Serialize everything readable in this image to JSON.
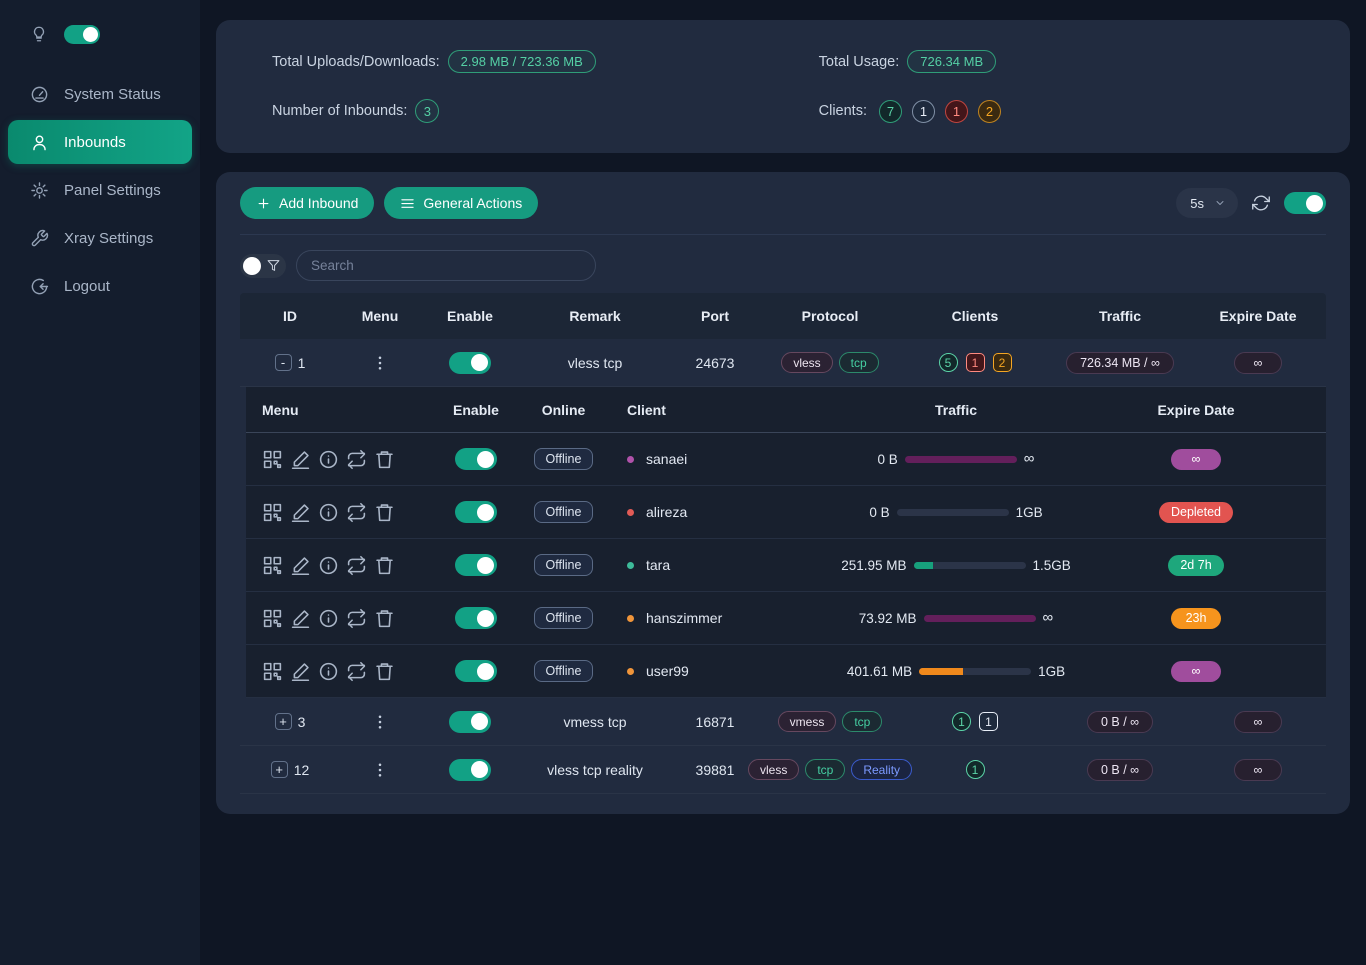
{
  "colors": {
    "accent_green": "#12a185",
    "panel_bg": "#212b3f",
    "page_bg": "#0f1624",
    "sidebar_bg": "#141d2d",
    "magenta": "#a04d9d",
    "red": "#e25450",
    "orange": "#f6941d",
    "green": "#1ea77c"
  },
  "sidebar": {
    "theme_toggle_on": true,
    "items": [
      {
        "label": "System Status",
        "icon": "dashboard-icon",
        "active": false
      },
      {
        "label": "Inbounds",
        "icon": "user-icon",
        "active": true
      },
      {
        "label": "Panel Settings",
        "icon": "gear-icon",
        "active": false
      },
      {
        "label": "Xray Settings",
        "icon": "wrench-icon",
        "active": false
      },
      {
        "label": "Logout",
        "icon": "logout-icon",
        "active": false
      }
    ]
  },
  "stats": {
    "total_uploads_downloads_label": "Total Uploads/Downloads:",
    "total_uploads_downloads_value": "2.98 MB / 723.36 MB",
    "number_of_inbounds_label": "Number of Inbounds:",
    "number_of_inbounds_value": "3",
    "total_usage_label": "Total Usage:",
    "total_usage_value": "726.34 MB",
    "clients_label": "Clients:",
    "client_counts": [
      {
        "value": "7",
        "color": "green"
      },
      {
        "value": "1",
        "color": "gray"
      },
      {
        "value": "1",
        "color": "red"
      },
      {
        "value": "2",
        "color": "orange"
      }
    ]
  },
  "toolbar": {
    "add_inbound_label": "Add Inbound",
    "general_actions_label": "General Actions",
    "refresh_interval": "5s",
    "auto_refresh_on": true
  },
  "search": {
    "placeholder": "Search",
    "value": ""
  },
  "table": {
    "columns": [
      "ID",
      "Menu",
      "Enable",
      "Remark",
      "Port",
      "Protocol",
      "Clients",
      "Traffic",
      "Expire Date"
    ],
    "rows": [
      {
        "id": "1",
        "expanded": true,
        "enabled": true,
        "remark": "vless tcp",
        "port": "24673",
        "protocols": [
          {
            "label": "vless",
            "color": "purple"
          },
          {
            "label": "tcp",
            "color": "green"
          }
        ],
        "client_counts": [
          {
            "value": "5",
            "color": "green",
            "shape": "circle"
          },
          {
            "value": "1",
            "color": "red",
            "shape": "square"
          },
          {
            "value": "2",
            "color": "orange",
            "shape": "square"
          }
        ],
        "traffic": "726.34 MB / ∞",
        "expire": "∞"
      },
      {
        "id": "3",
        "expanded": false,
        "enabled": true,
        "remark": "vmess tcp",
        "port": "16871",
        "protocols": [
          {
            "label": "vmess",
            "color": "purple"
          },
          {
            "label": "tcp",
            "color": "green"
          }
        ],
        "client_counts": [
          {
            "value": "1",
            "color": "green",
            "shape": "circle"
          },
          {
            "value": "1",
            "color": "gray",
            "shape": "square"
          }
        ],
        "traffic": "0 B / ∞",
        "expire": "∞"
      },
      {
        "id": "12",
        "expanded": false,
        "enabled": true,
        "remark": "vless tcp reality",
        "port": "39881",
        "protocols": [
          {
            "label": "vless",
            "color": "purple"
          },
          {
            "label": "tcp",
            "color": "green"
          },
          {
            "label": "Reality",
            "color": "blue"
          }
        ],
        "client_counts": [
          {
            "value": "1",
            "color": "green",
            "shape": "circle"
          }
        ],
        "traffic": "0 B / ∞",
        "expire": "∞"
      }
    ],
    "client_table": {
      "columns": [
        "Menu",
        "Enable",
        "Online",
        "Client",
        "Traffic",
        "Expire Date"
      ],
      "menu_icons": [
        "qrcode-icon",
        "edit-icon",
        "info-icon",
        "reset-icon",
        "delete-icon"
      ],
      "rows": [
        {
          "name": "sanaei",
          "dot_color": "#b052aa",
          "online": "Offline",
          "enabled": true,
          "used": "0 B",
          "limit": "∞",
          "bar_percent": 100,
          "bar_color": "purple",
          "expire_label": "∞",
          "expire_color": "magenta"
        },
        {
          "name": "alireza",
          "dot_color": "#e25b56",
          "online": "Offline",
          "enabled": true,
          "used": "0 B",
          "limit": "1GB",
          "bar_percent": 0,
          "bar_color": "none",
          "expire_label": "Depleted",
          "expire_color": "red"
        },
        {
          "name": "tara",
          "dot_color": "#3dbb9a",
          "online": "Offline",
          "enabled": true,
          "used": "251.95 MB",
          "limit": "1.5GB",
          "bar_percent": 17,
          "bar_color": "green",
          "expire_label": "2d 7h",
          "expire_color": "green"
        },
        {
          "name": "hanszimmer",
          "dot_color": "#f0953a",
          "online": "Offline",
          "enabled": true,
          "used": "73.92 MB",
          "limit": "∞",
          "bar_percent": 100,
          "bar_color": "purple",
          "expire_label": "23h",
          "expire_color": "orange"
        },
        {
          "name": "user99",
          "dot_color": "#f0953a",
          "online": "Offline",
          "enabled": true,
          "used": "401.61 MB",
          "limit": "1GB",
          "bar_percent": 39,
          "bar_color": "orange",
          "expire_label": "∞",
          "expire_color": "magenta"
        }
      ]
    }
  }
}
